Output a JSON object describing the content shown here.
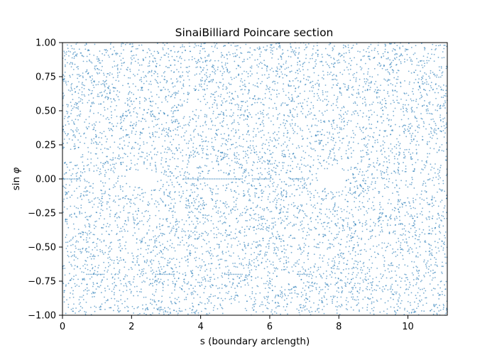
{
  "chart_data": {
    "type": "scatter",
    "title": "SinaiBilliard Poincare section",
    "xlabel": "s (boundary arclength)",
    "ylabel": "sin φ",
    "ylabel_prefix": "sin ",
    "ylabel_symbol": "φ",
    "xlim": [
      0,
      11.14
    ],
    "ylim": [
      -1.0,
      1.0
    ],
    "x_ticks": [
      0,
      2,
      4,
      6,
      8,
      10
    ],
    "x_tick_labels": [
      "0",
      "2",
      "4",
      "6",
      "8",
      "10"
    ],
    "y_ticks": [
      -1.0,
      -0.75,
      -0.5,
      -0.25,
      0.0,
      0.25,
      0.5,
      0.75,
      1.0
    ],
    "y_tick_labels": [
      "−1.00",
      "−0.75",
      "−0.50",
      "−0.25",
      "0.00",
      "0.25",
      "0.50",
      "0.75",
      "1.00"
    ],
    "grid": false,
    "marker_color": "#1f77b4",
    "marker_alpha": 0.6,
    "series": [
      {
        "generator": "chaotic-uniform",
        "count": 7000,
        "seed": 12345,
        "exclusions": [
          {
            "cx": 2.3,
            "cy": 0.0,
            "rx": 0.45,
            "ry": 0.06
          },
          {
            "cx": 4.5,
            "cy": 0.0,
            "rx": 0.35,
            "ry": 0.05
          },
          {
            "cx": 7.8,
            "cy": 0.0,
            "rx": 0.4,
            "ry": 0.08
          }
        ]
      },
      {
        "generator": "horizontal-band",
        "y": 0.0,
        "x_ranges": [
          [
            0.0,
            0.5
          ],
          [
            3.5,
            5.2
          ],
          [
            5.5,
            6.0
          ],
          [
            6.6,
            7.0
          ]
        ],
        "step": 0.05
      },
      {
        "generator": "horizontal-band",
        "y": -0.7,
        "x_ranges": [
          [
            0.7,
            1.2
          ],
          [
            2.7,
            3.2
          ],
          [
            4.7,
            5.2
          ],
          [
            6.8,
            7.2
          ]
        ],
        "step": 0.05
      }
    ]
  }
}
